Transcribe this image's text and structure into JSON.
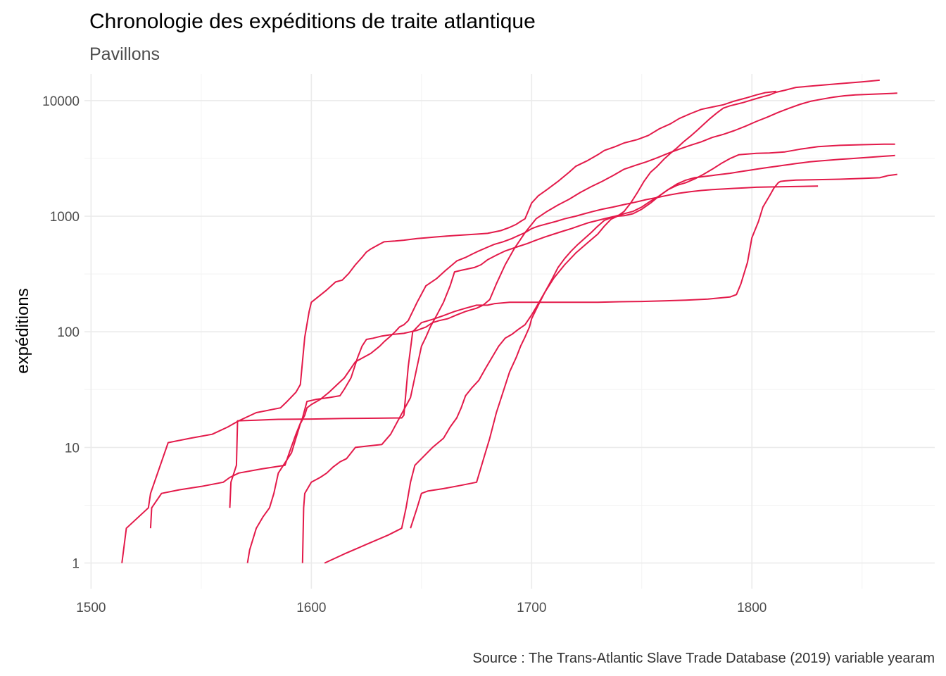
{
  "chart_data": {
    "type": "line",
    "title": "Chronologie des expéditions de traite atlantique",
    "subtitle": "Pavillons",
    "xlabel": "",
    "ylabel": "expéditions",
    "caption": "Source : The Trans-Atlantic Slave Trade Database (2019) variable yearam",
    "y_scale": "log10",
    "xlim": [
      1497,
      1883
    ],
    "ylim": [
      0.6,
      17000
    ],
    "x_ticks": [
      1500,
      1600,
      1700,
      1800
    ],
    "x_tick_labels": [
      "1500",
      "1600",
      "1700",
      "1800"
    ],
    "y_ticks": [
      1,
      10,
      100,
      1000,
      10000
    ],
    "y_tick_labels": [
      "1",
      "10",
      "100",
      "1000",
      "10000"
    ],
    "grid": true,
    "legend": "none",
    "color": "#e31a4a",
    "series": [
      {
        "x": [
          1514,
          1516,
          1526,
          1527,
          1535,
          1545,
          1555,
          1562,
          1567,
          1575,
          1586,
          1589,
          1593,
          1595,
          1597,
          1599,
          1600,
          1603,
          1607,
          1611,
          1614,
          1617,
          1620,
          1623,
          1625,
          1627,
          1630,
          1633,
          1638,
          1642,
          1648,
          1652,
          1656,
          1660,
          1665,
          1670,
          1675,
          1680,
          1686,
          1690,
          1693,
          1695,
          1697,
          1700,
          1703,
          1707,
          1712,
          1717,
          1720,
          1725,
          1730,
          1733,
          1738,
          1742,
          1748,
          1753,
          1758,
          1763,
          1767,
          1772,
          1777,
          1782,
          1787,
          1792,
          1797,
          1802,
          1806,
          1811
        ],
        "y": [
          1,
          2,
          3,
          4,
          11,
          12,
          13,
          15,
          17,
          20,
          22,
          25,
          30,
          35,
          90,
          150,
          180,
          200,
          230,
          270,
          280,
          320,
          380,
          440,
          490,
          520,
          560,
          600,
          610,
          620,
          640,
          650,
          660,
          670,
          680,
          690,
          700,
          710,
          750,
          800,
          850,
          900,
          950,
          1300,
          1500,
          1700,
          2000,
          2400,
          2700,
          3000,
          3400,
          3700,
          4000,
          4300,
          4600,
          5000,
          5700,
          6300,
          7000,
          7700,
          8400,
          8800,
          9200,
          9900,
          10500,
          11200,
          11700,
          12000
        ]
      },
      {
        "x": [
          1527,
          1527.5,
          1532,
          1540,
          1550,
          1560,
          1563,
          1567,
          1577,
          1588,
          1590,
          1593,
          1596,
          1598,
          1602,
          1608,
          1613,
          1615,
          1618,
          1621,
          1623,
          1625,
          1628,
          1632,
          1637,
          1642,
          1645,
          1648,
          1652,
          1655,
          1658,
          1662,
          1666,
          1670,
          1675,
          1678,
          1681,
          1684,
          1688,
          1692,
          1697,
          1702,
          1707,
          1712,
          1717,
          1722,
          1727,
          1732,
          1737,
          1742,
          1747,
          1752,
          1757,
          1762,
          1767,
          1772,
          1777,
          1782,
          1787,
          1792,
          1797,
          1802,
          1807,
          1812,
          1817,
          1822,
          1827,
          1832,
          1837,
          1842,
          1847,
          1852,
          1857,
          1862,
          1866
        ],
        "y": [
          2,
          3,
          4,
          4.3,
          4.6,
          5,
          5.5,
          6,
          6.5,
          7,
          9,
          13,
          18,
          25,
          26,
          27,
          28,
          32,
          40,
          60,
          75,
          86,
          88,
          92,
          95,
          97,
          100,
          103,
          110,
          120,
          125,
          130,
          140,
          150,
          160,
          170,
          190,
          260,
          380,
          520,
          720,
          950,
          1100,
          1250,
          1400,
          1600,
          1800,
          2000,
          2250,
          2550,
          2750,
          2950,
          3200,
          3500,
          3800,
          4100,
          4400,
          4800,
          5100,
          5500,
          6000,
          6600,
          7200,
          7900,
          8600,
          9300,
          9900,
          10300,
          10700,
          11000,
          11200,
          11300,
          11400,
          11500,
          11600
        ]
      },
      {
        "x": [
          1563,
          1563.5,
          1566,
          1566.5,
          1575,
          1585,
          1600,
          1615,
          1630,
          1641,
          1642,
          1644,
          1646,
          1650,
          1655,
          1660,
          1665,
          1670,
          1675,
          1680,
          1683,
          1690,
          1700,
          1710,
          1720,
          1730,
          1740,
          1750,
          1760,
          1770,
          1780,
          1790,
          1793,
          1795,
          1798,
          1800,
          1803,
          1805,
          1808,
          1810,
          1812,
          1813,
          1815,
          1820,
          1830,
          1840,
          1850,
          1858,
          1862,
          1866
        ],
        "y": [
          3,
          5,
          7,
          17,
          17.2,
          17.5,
          17.6,
          17.8,
          17.9,
          18,
          19,
          50,
          100,
          120,
          128,
          138,
          150,
          160,
          170,
          170,
          175,
          180,
          180,
          180,
          180,
          180,
          182,
          183,
          185,
          188,
          192,
          200,
          210,
          260,
          400,
          650,
          900,
          1200,
          1500,
          1750,
          1950,
          2000,
          2020,
          2050,
          2070,
          2090,
          2120,
          2150,
          2250,
          2300
        ]
      },
      {
        "x": [
          1571,
          1572,
          1575,
          1578,
          1581,
          1583,
          1585,
          1591,
          1593,
          1595,
          1597,
          1598,
          1600,
          1604,
          1608,
          1615,
          1620,
          1627,
          1631,
          1633,
          1636,
          1638,
          1640,
          1642,
          1644,
          1646,
          1648,
          1652,
          1657,
          1661,
          1664,
          1666,
          1670,
          1673,
          1676,
          1680,
          1683,
          1687,
          1691,
          1694,
          1697,
          1700,
          1703,
          1707,
          1711,
          1715,
          1720,
          1724,
          1728,
          1732,
          1737,
          1742,
          1747,
          1752,
          1757,
          1762,
          1767,
          1772,
          1777,
          1782,
          1787,
          1792,
          1797,
          1802,
          1808,
          1815,
          1822,
          1830
        ],
        "y": [
          1,
          1.3,
          2,
          2.5,
          3,
          4,
          6,
          9,
          12,
          16,
          19,
          22,
          23.5,
          26,
          30,
          40,
          55,
          65,
          75,
          82,
          92,
          100,
          110,
          115,
          125,
          150,
          180,
          250,
          290,
          340,
          380,
          410,
          440,
          470,
          500,
          540,
          570,
          600,
          640,
          680,
          720,
          780,
          820,
          860,
          900,
          950,
          1000,
          1050,
          1100,
          1150,
          1200,
          1260,
          1320,
          1390,
          1450,
          1520,
          1580,
          1630,
          1670,
          1700,
          1720,
          1740,
          1760,
          1780,
          1790,
          1800,
          1810,
          1820
        ]
      },
      {
        "x": [
          1596,
          1596.5,
          1597,
          1600,
          1604,
          1607,
          1610,
          1613,
          1616,
          1620,
          1626,
          1632,
          1636,
          1640,
          1645,
          1648,
          1650,
          1652,
          1654,
          1657,
          1660,
          1663,
          1665,
          1668,
          1671,
          1674,
          1677,
          1680,
          1684,
          1688,
          1693,
          1698,
          1702,
          1706,
          1710,
          1714,
          1718,
          1722,
          1726,
          1730,
          1734,
          1738,
          1742,
          1746,
          1750,
          1754,
          1758,
          1762,
          1766,
          1770,
          1774,
          1778,
          1782,
          1786,
          1790,
          1794,
          1798,
          1802,
          1808,
          1815,
          1822,
          1830,
          1840,
          1850,
          1860,
          1865
        ],
        "y": [
          1,
          3,
          4,
          5,
          5.5,
          6,
          6.8,
          7.5,
          8,
          10,
          10.3,
          10.6,
          13,
          18,
          27,
          50,
          75,
          90,
          110,
          140,
          180,
          250,
          330,
          340,
          350,
          360,
          380,
          420,
          460,
          500,
          540,
          580,
          620,
          660,
          700,
          740,
          780,
          830,
          880,
          920,
          960,
          1000,
          1050,
          1100,
          1200,
          1350,
          1500,
          1700,
          1850,
          1950,
          2100,
          2300,
          2550,
          2850,
          3150,
          3400,
          3450,
          3500,
          3520,
          3600,
          3800,
          4000,
          4100,
          4150,
          4200,
          4200
        ]
      },
      {
        "x": [
          1606,
          1615,
          1625,
          1635,
          1641,
          1643,
          1645,
          1647,
          1650,
          1655,
          1660,
          1663,
          1666,
          1668,
          1670,
          1673,
          1676,
          1679,
          1682,
          1685,
          1688,
          1691,
          1694,
          1697,
          1700,
          1703,
          1706,
          1709,
          1712,
          1715,
          1718,
          1721,
          1724,
          1727,
          1730,
          1733,
          1736,
          1739,
          1742,
          1745,
          1748,
          1751,
          1754,
          1757,
          1760,
          1763,
          1766,
          1769,
          1772,
          1775,
          1778,
          1781,
          1784,
          1787,
          1790,
          1793,
          1796,
          1799,
          1802,
          1805,
          1808,
          1811,
          1815,
          1820,
          1830,
          1840,
          1850,
          1858
        ],
        "y": [
          1,
          1.2,
          1.45,
          1.75,
          2,
          3,
          5,
          7,
          8,
          10,
          12,
          15,
          18,
          22,
          28,
          33,
          38,
          48,
          60,
          75,
          88,
          95,
          105,
          115,
          140,
          175,
          220,
          280,
          360,
          430,
          500,
          570,
          640,
          720,
          820,
          920,
          970,
          1000,
          1100,
          1300,
          1600,
          2000,
          2400,
          2700,
          3100,
          3500,
          3900,
          4400,
          4900,
          5500,
          6200,
          7000,
          7800,
          8600,
          9000,
          9300,
          9600,
          10000,
          10400,
          10800,
          11200,
          11800,
          12300,
          13000,
          13500,
          14000,
          14500,
          15000
        ]
      },
      {
        "x": [
          1645,
          1648,
          1650,
          1653,
          1660,
          1668,
          1675,
          1679,
          1681,
          1684,
          1687,
          1690,
          1693,
          1695,
          1697,
          1699,
          1700,
          1703,
          1706,
          1710,
          1715,
          1720,
          1725,
          1730,
          1733,
          1736,
          1739,
          1742,
          1746,
          1750,
          1754,
          1758,
          1762,
          1766,
          1770,
          1774,
          1778,
          1782,
          1786,
          1790,
          1793,
          1796,
          1799,
          1802,
          1805,
          1808,
          1811,
          1814,
          1817,
          1820,
          1823,
          1826,
          1830,
          1835,
          1840,
          1845,
          1850,
          1855,
          1860,
          1865
        ],
        "y": [
          2,
          3,
          4,
          4.2,
          4.4,
          4.7,
          5,
          9,
          12,
          20,
          30,
          45,
          60,
          75,
          90,
          110,
          130,
          170,
          220,
          290,
          380,
          480,
          580,
          700,
          820,
          940,
          1000,
          1010,
          1050,
          1150,
          1300,
          1500,
          1700,
          1900,
          2050,
          2150,
          2200,
          2250,
          2300,
          2350,
          2400,
          2450,
          2500,
          2550,
          2600,
          2650,
          2700,
          2750,
          2800,
          2850,
          2900,
          2950,
          3000,
          3050,
          3100,
          3150,
          3200,
          3250,
          3300,
          3350
        ]
      }
    ]
  }
}
